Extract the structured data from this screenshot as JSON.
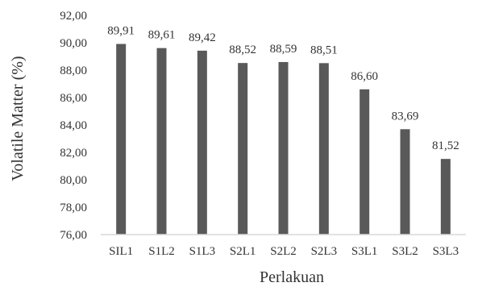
{
  "chart_data": {
    "type": "bar",
    "xlabel": "Perlakuan",
    "ylabel": "Volatile Matter (%)",
    "ylim": [
      76,
      92
    ],
    "yticks": [
      "76,00",
      "78,00",
      "80,00",
      "82,00",
      "84,00",
      "86,00",
      "88,00",
      "90,00",
      "92,00"
    ],
    "categories": [
      "SIL1",
      "S1L2",
      "S1L3",
      "S2L1",
      "S2L2",
      "S2L3",
      "S3L1",
      "S3L2",
      "S3L3"
    ],
    "values": [
      89.91,
      89.61,
      89.42,
      88.52,
      88.59,
      88.51,
      86.6,
      83.69,
      81.52
    ],
    "data_labels": [
      "89,91",
      "89,61",
      "89,42",
      "88,52",
      "88,59",
      "88,51",
      "86,60",
      "83,69",
      "81,52"
    ],
    "grid": false,
    "legend": "none",
    "bar_color": "#595959",
    "axis_color": "#d9d9d9",
    "text_color": "#333333"
  }
}
